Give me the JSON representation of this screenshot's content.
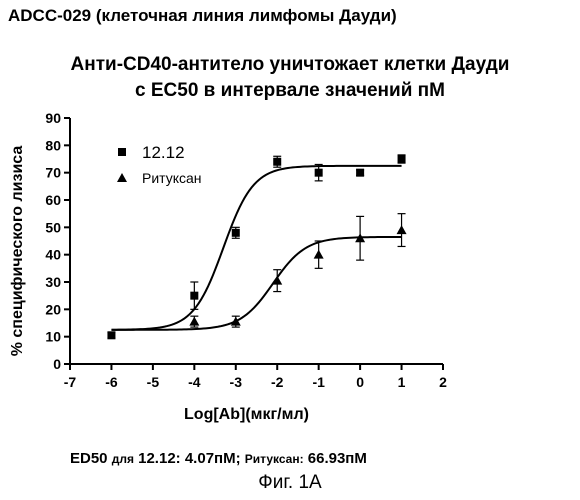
{
  "header": "ADCC-029 (клеточная линия лимфомы Дауди)",
  "footer": {
    "ed50_prefix": "ED50",
    "ed50_for": "для",
    "ed50_ab1": "12.12:",
    "ed50_val1": "4.07пМ;",
    "ed50_ab2": "Ритуксан:",
    "ed50_val2": "66.93пМ",
    "figure_caption": "Фиг. 1A"
  },
  "chart_data": {
    "type": "scatter",
    "title": "Анти-CD40-антитело уничтожает клетки Дауди",
    "subtitle": "с EC50 в интервале значений пМ",
    "xlabel": "Log[Ab](мкг/мл)",
    "ylabel": "% специфического лизиса",
    "xlim": [
      -7,
      2
    ],
    "ylim": [
      0,
      90
    ],
    "x_ticks": [
      -7,
      -6,
      -5,
      -4,
      -3,
      -2,
      -1,
      0,
      1,
      2
    ],
    "y_ticks": [
      0,
      10,
      20,
      30,
      40,
      50,
      60,
      70,
      80,
      90
    ],
    "legend_position": "top-left",
    "series": [
      {
        "name": "12.12",
        "marker": "square",
        "color": "#000000",
        "points": [
          {
            "x": -6,
            "y": 10.5,
            "err": 1
          },
          {
            "x": -4,
            "y": 25,
            "err": 5
          },
          {
            "x": -3,
            "y": 48,
            "err": 2
          },
          {
            "x": -2,
            "y": 74,
            "err": 2
          },
          {
            "x": -1,
            "y": 70,
            "err": 3
          },
          {
            "x": 0,
            "y": 70,
            "err": 1
          },
          {
            "x": 1,
            "y": 75,
            "err": 1.5
          }
        ],
        "fit": {
          "bottom": 12.5,
          "top": 72.5,
          "logEC50": -3.3,
          "hill": 1.2
        }
      },
      {
        "name": "Ритуксан",
        "marker": "triangle",
        "color": "#000000",
        "points": [
          {
            "x": -4,
            "y": 15.5,
            "err": 2
          },
          {
            "x": -3,
            "y": 15.5,
            "err": 2
          },
          {
            "x": -2,
            "y": 30.5,
            "err": 4
          },
          {
            "x": -1,
            "y": 40,
            "err": 5
          },
          {
            "x": 0,
            "y": 46,
            "err": 8
          },
          {
            "x": 1,
            "y": 49,
            "err": 6
          }
        ],
        "fit": {
          "bottom": 12.5,
          "top": 46.5,
          "logEC50": -2.1,
          "hill": 1.1
        }
      }
    ]
  }
}
